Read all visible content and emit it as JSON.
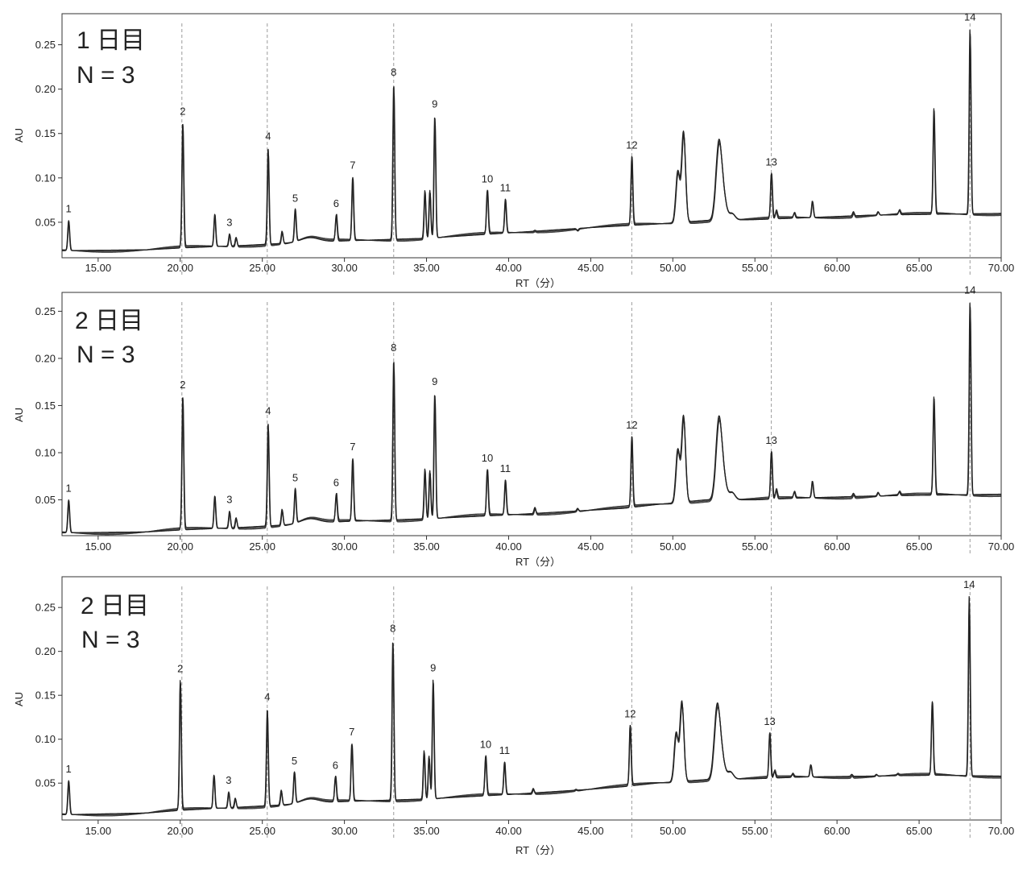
{
  "chart_data": [
    {
      "type": "line",
      "title": "1 日目",
      "subtitle": "N = 3",
      "xlabel": "RT（分）",
      "ylabel": "AU",
      "xlim": [
        12.8,
        70.0
      ],
      "ylim": [
        0.01,
        0.285
      ],
      "xticks": [
        15,
        20,
        25,
        30,
        35,
        40,
        45,
        50,
        55,
        60,
        65,
        70
      ],
      "xtick_labels": [
        "15.00",
        "20.00",
        "25.00",
        "30.00",
        "35.00",
        "40.00",
        "45.00",
        "50.00",
        "55.00",
        "60.00",
        "65.00",
        "70.00"
      ],
      "yticks": [
        0.05,
        0.1,
        0.15,
        0.2,
        0.25
      ],
      "ytick_labels": [
        "0.05",
        "0.10",
        "0.15",
        "0.20",
        "0.25"
      ],
      "reference_lines_x": [
        20.1,
        25.3,
        33.0,
        47.5,
        56.0,
        68.1
      ],
      "peaks": [
        {
          "label": "1",
          "x": 13.2,
          "y": 0.052
        },
        {
          "label": "2",
          "x": 20.15,
          "y": 0.162
        },
        {
          "label": "3",
          "x": 23.0,
          "y": 0.037
        },
        {
          "label": "4",
          "x": 25.35,
          "y": 0.134
        },
        {
          "label": "5",
          "x": 27.0,
          "y": 0.064
        },
        {
          "label": "6",
          "x": 29.5,
          "y": 0.058
        },
        {
          "label": "7",
          "x": 30.5,
          "y": 0.101
        },
        {
          "label": "8",
          "x": 33.0,
          "y": 0.206
        },
        {
          "label": "9",
          "x": 35.5,
          "y": 0.17
        },
        {
          "label": "10",
          "x": 38.7,
          "y": 0.086
        },
        {
          "label": "11",
          "x": 39.8,
          "y": 0.076
        },
        {
          "label": "12",
          "x": 47.5,
          "y": 0.124
        },
        {
          "label": "13",
          "x": 56.0,
          "y": 0.105
        },
        {
          "label": "14",
          "x": 68.1,
          "y": 0.268
        }
      ],
      "unlabeled_peaks": [
        {
          "x": 22.1,
          "y": 0.059
        },
        {
          "x": 23.4,
          "y": 0.033
        },
        {
          "x": 26.2,
          "y": 0.04
        },
        {
          "x": 34.9,
          "y": 0.086
        },
        {
          "x": 35.2,
          "y": 0.086
        },
        {
          "x": 41.6,
          "y": 0.041
        },
        {
          "x": 44.2,
          "y": 0.041
        },
        {
          "x": 50.3,
          "y": 0.107
        },
        {
          "x": 50.65,
          "y": 0.152
        },
        {
          "x": 52.8,
          "y": 0.138
        },
        {
          "x": 53.1,
          "y": 0.073
        },
        {
          "x": 53.6,
          "y": 0.06
        },
        {
          "x": 56.3,
          "y": 0.062
        },
        {
          "x": 57.4,
          "y": 0.06
        },
        {
          "x": 58.5,
          "y": 0.074
        },
        {
          "x": 61.0,
          "y": 0.062
        },
        {
          "x": 62.5,
          "y": 0.062
        },
        {
          "x": 63.8,
          "y": 0.063
        },
        {
          "x": 65.9,
          "y": 0.178
        }
      ],
      "baseline": [
        [
          12.8,
          0.018
        ],
        [
          18.0,
          0.019
        ],
        [
          20.0,
          0.021
        ],
        [
          24.0,
          0.024
        ],
        [
          27.0,
          0.027
        ],
        [
          30.0,
          0.029
        ],
        [
          35.0,
          0.032
        ],
        [
          40.0,
          0.038
        ],
        [
          45.0,
          0.044
        ],
        [
          47.0,
          0.046
        ],
        [
          49.0,
          0.048
        ],
        [
          52.0,
          0.052
        ],
        [
          55.0,
          0.053
        ],
        [
          58.0,
          0.055
        ],
        [
          62.0,
          0.058
        ],
        [
          66.0,
          0.059
        ],
        [
          70.0,
          0.06
        ]
      ],
      "replicates": 3
    },
    {
      "type": "line",
      "title": "2 日目",
      "subtitle": "N = 3",
      "xlabel": "RT（分）",
      "ylabel": "AU",
      "xlim": [
        12.8,
        70.0
      ],
      "ylim": [
        0.012,
        0.27
      ],
      "xticks": [
        15,
        20,
        25,
        30,
        35,
        40,
        45,
        50,
        55,
        60,
        65,
        70
      ],
      "xtick_labels": [
        "15.00",
        "20.00",
        "25.00",
        "30.00",
        "35.00",
        "40.00",
        "45.00",
        "50.00",
        "55.00",
        "60.00",
        "65.00",
        "70.00"
      ],
      "yticks": [
        0.05,
        0.1,
        0.15,
        0.2,
        0.25
      ],
      "ytick_labels": [
        "0.05",
        "0.10",
        "0.15",
        "0.20",
        "0.25"
      ],
      "reference_lines_x": [
        20.1,
        25.3,
        33.0,
        47.5,
        56.0,
        68.1
      ],
      "peaks": [
        {
          "label": "1",
          "x": 13.2,
          "y": 0.05
        },
        {
          "label": "2",
          "x": 20.15,
          "y": 0.16
        },
        {
          "label": "3",
          "x": 23.0,
          "y": 0.038
        },
        {
          "label": "4",
          "x": 25.35,
          "y": 0.132
        },
        {
          "label": "5",
          "x": 27.0,
          "y": 0.061
        },
        {
          "label": "6",
          "x": 29.5,
          "y": 0.056
        },
        {
          "label": "7",
          "x": 30.5,
          "y": 0.094
        },
        {
          "label": "8",
          "x": 33.0,
          "y": 0.199
        },
        {
          "label": "9",
          "x": 35.5,
          "y": 0.163
        },
        {
          "label": "10",
          "x": 38.7,
          "y": 0.082
        },
        {
          "label": "11",
          "x": 39.8,
          "y": 0.071
        },
        {
          "label": "12",
          "x": 47.5,
          "y": 0.117
        },
        {
          "label": "13",
          "x": 56.0,
          "y": 0.101
        },
        {
          "label": "14",
          "x": 68.1,
          "y": 0.26
        }
      ],
      "unlabeled_peaks": [
        {
          "x": 22.1,
          "y": 0.054
        },
        {
          "x": 23.4,
          "y": 0.031
        },
        {
          "x": 26.2,
          "y": 0.04
        },
        {
          "x": 34.9,
          "y": 0.083
        },
        {
          "x": 35.2,
          "y": 0.081
        },
        {
          "x": 41.6,
          "y": 0.042
        },
        {
          "x": 44.2,
          "y": 0.041
        },
        {
          "x": 50.3,
          "y": 0.103
        },
        {
          "x": 50.65,
          "y": 0.139
        },
        {
          "x": 52.8,
          "y": 0.134
        },
        {
          "x": 53.1,
          "y": 0.069
        },
        {
          "x": 53.6,
          "y": 0.058
        },
        {
          "x": 56.3,
          "y": 0.06
        },
        {
          "x": 57.4,
          "y": 0.058
        },
        {
          "x": 58.5,
          "y": 0.07
        },
        {
          "x": 61.0,
          "y": 0.057
        },
        {
          "x": 62.5,
          "y": 0.058
        },
        {
          "x": 63.8,
          "y": 0.058
        },
        {
          "x": 65.9,
          "y": 0.159
        }
      ],
      "baseline": [
        [
          12.8,
          0.015
        ],
        [
          18.0,
          0.016
        ],
        [
          20.0,
          0.018
        ],
        [
          24.0,
          0.021
        ],
        [
          27.0,
          0.024
        ],
        [
          30.0,
          0.027
        ],
        [
          35.0,
          0.03
        ],
        [
          40.0,
          0.034
        ],
        [
          45.0,
          0.039
        ],
        [
          47.0,
          0.041
        ],
        [
          49.0,
          0.045
        ],
        [
          52.0,
          0.05
        ],
        [
          55.0,
          0.05
        ],
        [
          58.0,
          0.052
        ],
        [
          62.0,
          0.054
        ],
        [
          66.0,
          0.055
        ],
        [
          70.0,
          0.056
        ]
      ],
      "replicates": 3
    },
    {
      "type": "line",
      "title": "2 日目",
      "subtitle": "N = 3",
      "xlabel": "RT（分）",
      "ylabel": "AU",
      "xlim": [
        12.8,
        70.0
      ],
      "ylim": [
        0.008,
        0.285
      ],
      "xticks": [
        15,
        20,
        25,
        30,
        35,
        40,
        45,
        50,
        55,
        60,
        65,
        70
      ],
      "xtick_labels": [
        "15.00",
        "20.00",
        "25.00",
        "30.00",
        "35.00",
        "40.00",
        "45.00",
        "50.00",
        "55.00",
        "60.00",
        "65.00",
        "70.00"
      ],
      "yticks": [
        0.05,
        0.1,
        0.15,
        0.2,
        0.25
      ],
      "ytick_labels": [
        "0.05",
        "0.10",
        "0.15",
        "0.20",
        "0.25"
      ],
      "reference_lines_x": [
        20.1,
        25.3,
        33.0,
        47.5,
        56.0,
        68.1
      ],
      "peaks": [
        {
          "label": "1",
          "x": 13.2,
          "y": 0.053
        },
        {
          "label": "2",
          "x": 20.0,
          "y": 0.167
        },
        {
          "label": "3",
          "x": 22.95,
          "y": 0.04
        },
        {
          "label": "4",
          "x": 25.3,
          "y": 0.135
        },
        {
          "label": "5",
          "x": 26.95,
          "y": 0.062
        },
        {
          "label": "6",
          "x": 29.45,
          "y": 0.057
        },
        {
          "label": "7",
          "x": 30.45,
          "y": 0.095
        },
        {
          "label": "8",
          "x": 32.95,
          "y": 0.213
        },
        {
          "label": "9",
          "x": 35.4,
          "y": 0.168
        },
        {
          "label": "10",
          "x": 38.6,
          "y": 0.081
        },
        {
          "label": "11",
          "x": 39.75,
          "y": 0.074
        },
        {
          "label": "12",
          "x": 47.4,
          "y": 0.116
        },
        {
          "label": "13",
          "x": 55.9,
          "y": 0.107
        },
        {
          "label": "14",
          "x": 68.05,
          "y": 0.263
        }
      ],
      "unlabeled_peaks": [
        {
          "x": 22.05,
          "y": 0.059
        },
        {
          "x": 23.35,
          "y": 0.033
        },
        {
          "x": 26.15,
          "y": 0.042
        },
        {
          "x": 34.85,
          "y": 0.087
        },
        {
          "x": 35.15,
          "y": 0.081
        },
        {
          "x": 41.5,
          "y": 0.044
        },
        {
          "x": 44.1,
          "y": 0.043
        },
        {
          "x": 50.2,
          "y": 0.107
        },
        {
          "x": 50.55,
          "y": 0.143
        },
        {
          "x": 52.7,
          "y": 0.136
        },
        {
          "x": 53.0,
          "y": 0.074
        },
        {
          "x": 53.5,
          "y": 0.063
        },
        {
          "x": 56.2,
          "y": 0.063
        },
        {
          "x": 57.3,
          "y": 0.06
        },
        {
          "x": 58.4,
          "y": 0.071
        },
        {
          "x": 60.9,
          "y": 0.06
        },
        {
          "x": 62.4,
          "y": 0.06
        },
        {
          "x": 63.7,
          "y": 0.06
        },
        {
          "x": 65.8,
          "y": 0.143
        }
      ],
      "baseline": [
        [
          12.8,
          0.014
        ],
        [
          18.0,
          0.016
        ],
        [
          20.0,
          0.019
        ],
        [
          24.0,
          0.023
        ],
        [
          27.0,
          0.026
        ],
        [
          30.0,
          0.029
        ],
        [
          35.0,
          0.032
        ],
        [
          40.0,
          0.037
        ],
        [
          45.0,
          0.043
        ],
        [
          47.0,
          0.046
        ],
        [
          49.0,
          0.05
        ],
        [
          52.0,
          0.054
        ],
        [
          55.0,
          0.055
        ],
        [
          58.0,
          0.057
        ],
        [
          62.0,
          0.058
        ],
        [
          66.0,
          0.059
        ],
        [
          70.0,
          0.058
        ]
      ],
      "replicates": 3
    }
  ]
}
